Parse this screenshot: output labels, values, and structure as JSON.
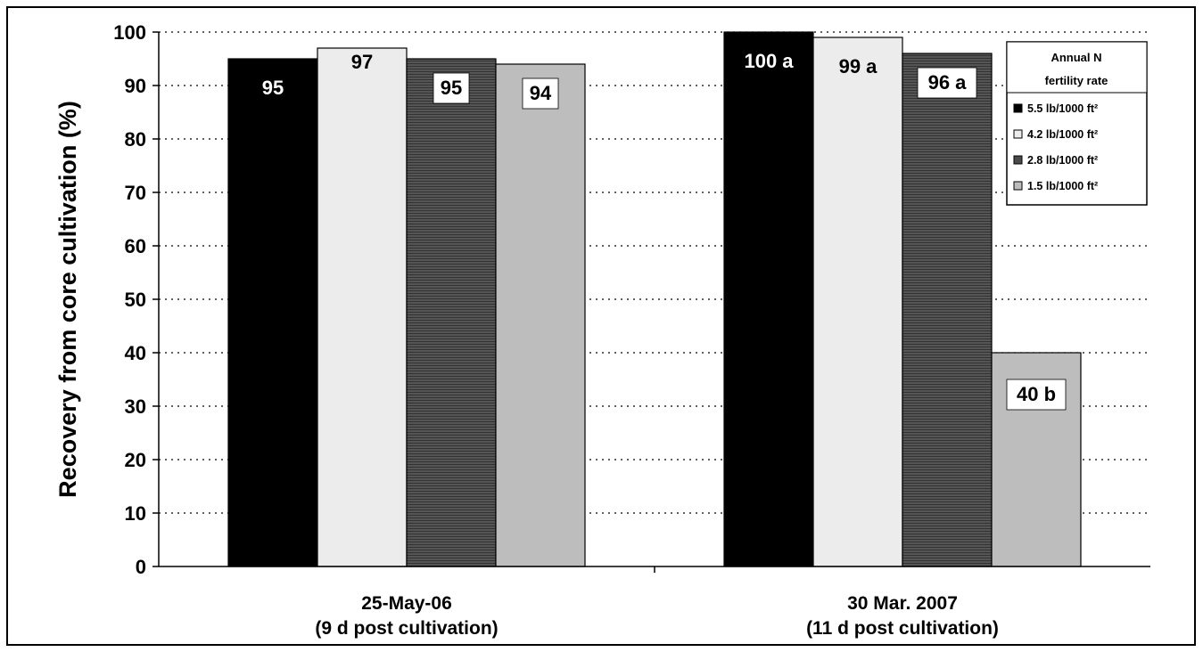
{
  "chart_data": {
    "type": "bar",
    "title": "",
    "xlabel": "",
    "ylabel": "Recovery from core cultivation (%)",
    "ylim": [
      0,
      100
    ],
    "yticks": [
      0,
      10,
      20,
      30,
      40,
      50,
      60,
      70,
      80,
      90,
      100
    ],
    "grid": true,
    "legend_position": "top-right",
    "legend_title": [
      "Annual N",
      "fertility rate"
    ],
    "categories": [
      [
        "25-May-06",
        "(9 d post cultivation)"
      ],
      [
        "30 Mar. 2007",
        "(11 d post cultivation)"
      ]
    ],
    "series": [
      {
        "name": "5.5 lb/1000 ft²",
        "values": [
          95,
          100
        ],
        "labels": [
          "95",
          "100 a"
        ],
        "color": "#000000"
      },
      {
        "name": "4.2 lb/1000 ft²",
        "values": [
          97,
          99
        ],
        "labels": [
          "97",
          "99 a"
        ],
        "color": "#ececec"
      },
      {
        "name": "2.8 lb/1000 ft²",
        "values": [
          95,
          96
        ],
        "labels": [
          "95",
          "96 a"
        ],
        "color": "#4a4a4a"
      },
      {
        "name": "1.5 lb/1000 ft²",
        "values": [
          94,
          40
        ],
        "labels": [
          "94",
          "40 b"
        ],
        "color": "#bdbdbd"
      }
    ]
  }
}
